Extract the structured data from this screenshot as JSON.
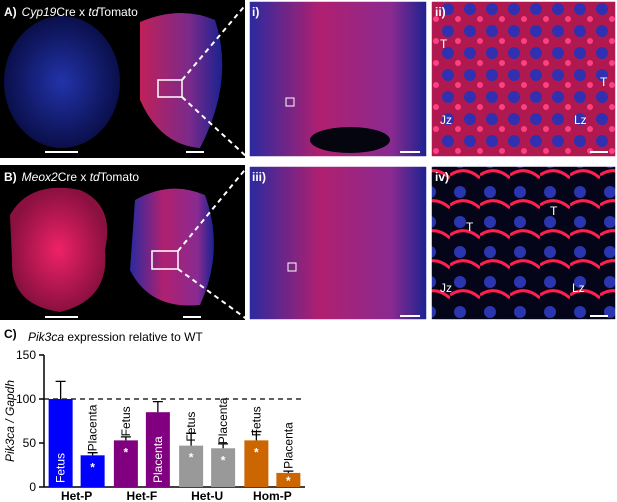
{
  "panels": [
    {
      "label": "A)",
      "title_parts": [
        {
          "text": "Cyp19",
          "italic": true
        },
        {
          "text": "Cre x ",
          "italic": false
        },
        {
          "text": "td",
          "italic": true
        },
        {
          "text": "Tomato",
          "italic": false
        }
      ],
      "insets": [
        {
          "label": "i)"
        },
        {
          "label": "ii)",
          "cells": [
            "T",
            "T",
            "Jz",
            "Lz"
          ]
        }
      ]
    },
    {
      "label": "B)",
      "title_parts": [
        {
          "text": "Meox2",
          "italic": true
        },
        {
          "text": "Cre x ",
          "italic": false
        },
        {
          "text": "td",
          "italic": true
        },
        {
          "text": "Tomato",
          "italic": false
        }
      ],
      "insets": [
        {
          "label": "iii)"
        },
        {
          "label": "iv)",
          "cells": [
            "T",
            "T",
            "Jz",
            "Lz"
          ]
        }
      ]
    }
  ],
  "chart_data": {
    "type": "bar",
    "panel_label": "C)",
    "title": "Pik3ca",
    "title_rest": " expression relative to WT",
    "y_label": "Pik3ca / Gapdh",
    "categories": [
      "Het-P",
      "Het-F",
      "Het-U",
      "Hom-P"
    ],
    "colors": [
      "#0000ff",
      "#800080",
      "#999999",
      "#cc6600"
    ],
    "series": [
      {
        "name": "Fetus",
        "values": [
          100,
          53,
          47,
          53
        ],
        "errors": [
          20,
          4,
          14,
          10
        ],
        "markers": [
          null,
          "*",
          "*",
          "*"
        ]
      },
      {
        "name": "Placenta",
        "values": [
          36,
          85,
          44,
          16
        ],
        "errors": [
          3,
          12,
          5,
          2
        ],
        "markers": [
          "*",
          null,
          "*",
          "*"
        ]
      }
    ],
    "reference_line": 100,
    "ylim": [
      0,
      150
    ],
    "yticks": [
      0,
      50,
      100,
      150
    ]
  }
}
